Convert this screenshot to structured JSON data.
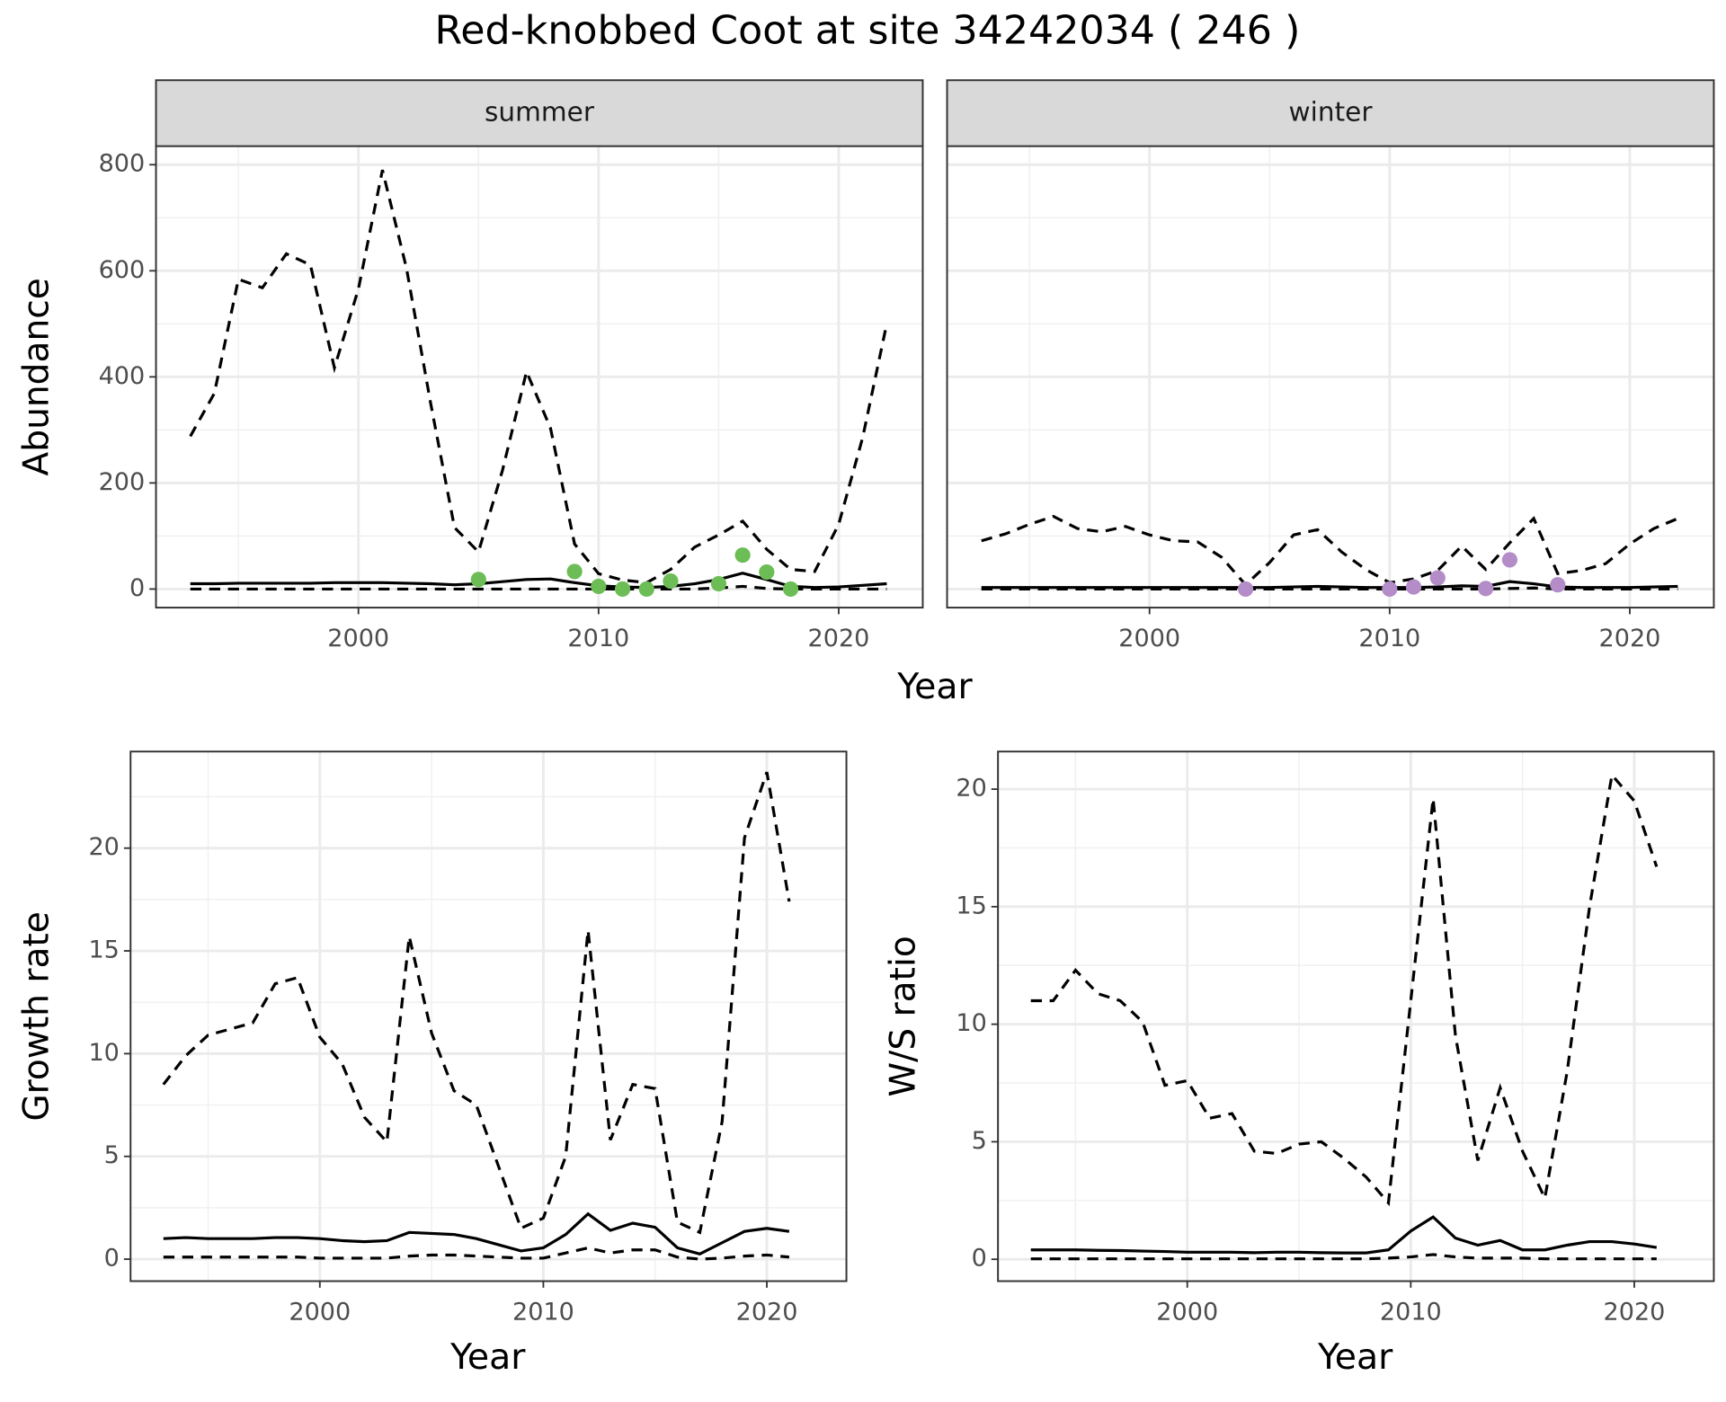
{
  "title": "Red-knobbed Coot at site 34242034 ( 246 )",
  "facet": {
    "xlabel": "Year",
    "ylabel": "Abundance"
  },
  "chart_data": [
    {
      "type": "line",
      "strip": "summer",
      "x": [
        1993,
        1994,
        1995,
        1996,
        1997,
        1998,
        1999,
        2000,
        2001,
        2002,
        2003,
        2004,
        2005,
        2006,
        2007,
        2008,
        2009,
        2010,
        2011,
        2012,
        2013,
        2014,
        2015,
        2016,
        2017,
        2018,
        2019,
        2020,
        2021,
        2022
      ],
      "xlim": [
        1991.57,
        2023.5
      ],
      "xticks": [
        2000,
        2010,
        2020
      ],
      "xminor": [
        1995,
        2005,
        2015
      ],
      "ylim": [
        -35,
        835
      ],
      "yticks": [
        0,
        200,
        400,
        600,
        800
      ],
      "yminor": [
        100,
        300,
        500,
        700
      ],
      "show_ytick_labels": true,
      "series": [
        {
          "style": "dashed",
          "color": "#000000",
          "values": [
            288,
            369,
            584,
            568,
            632,
            611,
            417,
            566,
            790,
            605,
            352,
            116,
            70,
            224,
            410,
            303,
            85,
            29,
            17,
            12,
            37,
            79,
            102,
            128,
            75,
            37,
            33,
            122,
            286,
            500
          ]
        },
        {
          "style": "solid",
          "color": "#000000",
          "values": [
            10,
            10,
            11,
            11,
            11,
            11,
            12,
            12,
            12,
            11,
            10,
            8,
            10,
            14,
            18,
            19,
            12,
            6,
            4,
            3,
            5,
            10,
            18,
            30,
            18,
            5,
            3,
            4,
            7,
            10
          ]
        },
        {
          "style": "dashed",
          "color": "#000000",
          "values": [
            0,
            0,
            0,
            0,
            0,
            0,
            0,
            0,
            0,
            0,
            0,
            0,
            0,
            0,
            0,
            0,
            0,
            0,
            0,
            0,
            0,
            0,
            2,
            5,
            1,
            0,
            0,
            0,
            0,
            0
          ]
        },
        {
          "style": "points",
          "color": "#6dbd57",
          "x": [
            2005,
            2009,
            2010,
            2011,
            2012,
            2013,
            2015,
            2016,
            2017,
            2018
          ],
          "values": [
            18,
            33,
            5,
            0,
            0,
            15,
            10,
            64,
            32,
            0
          ]
        }
      ]
    },
    {
      "type": "line",
      "strip": "winter",
      "x": [
        1993,
        1994,
        1995,
        1996,
        1997,
        1998,
        1999,
        2000,
        2001,
        2002,
        2003,
        2004,
        2005,
        2006,
        2007,
        2008,
        2009,
        2010,
        2011,
        2012,
        2013,
        2014,
        2015,
        2016,
        2017,
        2018,
        2019,
        2020,
        2021,
        2022
      ],
      "xlim": [
        1991.57,
        2023.5
      ],
      "xticks": [
        2000,
        2010,
        2020
      ],
      "xminor": [
        1995,
        2005,
        2015
      ],
      "ylim": [
        -35,
        835
      ],
      "yticks": [
        0,
        200,
        400,
        600,
        800
      ],
      "yminor": [
        100,
        300,
        500,
        700
      ],
      "show_ytick_labels": false,
      "series": [
        {
          "style": "dashed",
          "color": "#000000",
          "values": [
            91,
            104,
            122,
            137,
            114,
            108,
            118,
            102,
            91,
            89,
            60,
            8,
            50,
            102,
            112,
            70,
            37,
            12,
            19,
            35,
            81,
            37,
            87,
            133,
            29,
            35,
            48,
            85,
            114,
            133
          ]
        },
        {
          "style": "solid",
          "color": "#000000",
          "values": [
            3,
            3,
            3,
            3,
            3,
            3,
            3,
            3,
            3,
            3,
            3,
            3,
            3,
            4,
            5,
            4,
            3,
            3,
            3,
            4,
            6,
            5,
            14,
            10,
            4,
            3,
            3,
            3,
            4,
            5
          ]
        },
        {
          "style": "dashed",
          "color": "#000000",
          "values": [
            0,
            0,
            0,
            0,
            0,
            0,
            0,
            0,
            0,
            0,
            0,
            0,
            0,
            0,
            0,
            0,
            0,
            0,
            0,
            0,
            0,
            0,
            1,
            2,
            0,
            0,
            0,
            0,
            0,
            0
          ]
        },
        {
          "style": "points",
          "color": "#b48cc8",
          "x": [
            2004,
            2010,
            2011,
            2012,
            2014,
            2015,
            2017
          ],
          "values": [
            0,
            0,
            4,
            21,
            1,
            55,
            8
          ]
        }
      ]
    },
    {
      "type": "line",
      "xlabel": "Year",
      "ylabel": "Growth rate",
      "x": [
        1993,
        1994,
        1995,
        1996,
        1997,
        1998,
        1999,
        2000,
        2001,
        2002,
        2003,
        2004,
        2005,
        2006,
        2007,
        2008,
        2009,
        2010,
        2011,
        2012,
        2013,
        2014,
        2015,
        2016,
        2017,
        2018,
        2019,
        2020,
        2021
      ],
      "xlim": [
        1991.53,
        2023.56
      ],
      "xticks": [
        2000,
        2010,
        2020
      ],
      "xminor": [
        1995,
        2005,
        2015
      ],
      "ylim": [
        -1.07,
        24.7
      ],
      "yticks": [
        0,
        5,
        10,
        15,
        20
      ],
      "yminor": [
        2.5,
        7.5,
        12.5,
        17.5,
        22.5
      ],
      "show_ytick_labels": true,
      "series": [
        {
          "style": "dashed",
          "color": "#000000",
          "values": [
            8.5,
            9.9,
            10.9,
            11.2,
            11.5,
            13.4,
            13.7,
            10.8,
            9.5,
            6.9,
            5.7,
            15.7,
            11.0,
            8.2,
            7.5,
            4.5,
            1.5,
            2.0,
            5.0,
            16.0,
            5.8,
            8.5,
            8.3,
            1.8,
            1.3,
            6.7,
            20.5,
            23.7,
            17.4
          ]
        },
        {
          "style": "solid",
          "color": "#000000",
          "values": [
            1.0,
            1.05,
            1.0,
            1.0,
            1.0,
            1.05,
            1.05,
            1.0,
            0.9,
            0.85,
            0.9,
            1.3,
            1.25,
            1.2,
            1.0,
            0.7,
            0.4,
            0.55,
            1.2,
            2.2,
            1.4,
            1.75,
            1.55,
            0.55,
            0.25,
            0.8,
            1.35,
            1.5,
            1.35
          ]
        },
        {
          "style": "dashed",
          "color": "#000000",
          "values": [
            0.1,
            0.1,
            0.1,
            0.1,
            0.1,
            0.1,
            0.1,
            0.05,
            0.05,
            0.05,
            0.05,
            0.15,
            0.2,
            0.2,
            0.15,
            0.1,
            0.05,
            0.05,
            0.3,
            0.55,
            0.3,
            0.45,
            0.45,
            0.1,
            0.0,
            0.05,
            0.15,
            0.2,
            0.1
          ]
        }
      ]
    },
    {
      "type": "line",
      "xlabel": "Year",
      "ylabel": "W/S ratio",
      "x": [
        1993,
        1994,
        1995,
        1996,
        1997,
        1998,
        1999,
        2000,
        2001,
        2002,
        2003,
        2004,
        2005,
        2006,
        2007,
        2008,
        2009,
        2010,
        2011,
        2012,
        2013,
        2014,
        2015,
        2016,
        2017,
        2018,
        2019,
        2020,
        2021
      ],
      "xlim": [
        1991.53,
        2023.56
      ],
      "xticks": [
        2000,
        2010,
        2020
      ],
      "xminor": [
        1995,
        2005,
        2015
      ],
      "ylim": [
        -0.93,
        21.6
      ],
      "yticks": [
        0,
        5,
        10,
        15,
        20
      ],
      "yminor": [
        2.5,
        7.5,
        12.5,
        17.5
      ],
      "show_ytick_labels": true,
      "series": [
        {
          "style": "dashed",
          "color": "#000000",
          "values": [
            11.0,
            11.0,
            12.3,
            11.3,
            11.0,
            10.1,
            7.4,
            7.6,
            6.0,
            6.2,
            4.6,
            4.5,
            4.9,
            5.0,
            4.3,
            3.5,
            2.4,
            11.0,
            19.6,
            9.5,
            4.2,
            7.3,
            4.6,
            2.6,
            8.0,
            15.0,
            20.6,
            19.5,
            16.7
          ]
        },
        {
          "style": "solid",
          "color": "#000000",
          "values": [
            0.4,
            0.4,
            0.4,
            0.38,
            0.37,
            0.35,
            0.33,
            0.3,
            0.3,
            0.3,
            0.28,
            0.3,
            0.3,
            0.28,
            0.27,
            0.27,
            0.4,
            1.2,
            1.8,
            0.9,
            0.6,
            0.8,
            0.4,
            0.4,
            0.6,
            0.75,
            0.75,
            0.65,
            0.5
          ]
        },
        {
          "style": "dashed",
          "color": "#000000",
          "values": [
            0.02,
            0.02,
            0.02,
            0.02,
            0.02,
            0.02,
            0.02,
            0.02,
            0.02,
            0.02,
            0.02,
            0.02,
            0.02,
            0.02,
            0.02,
            0.02,
            0.05,
            0.1,
            0.2,
            0.1,
            0.05,
            0.05,
            0.05,
            0.02,
            0.02,
            0.02,
            0.02,
            0.02,
            0.02
          ]
        }
      ]
    }
  ]
}
